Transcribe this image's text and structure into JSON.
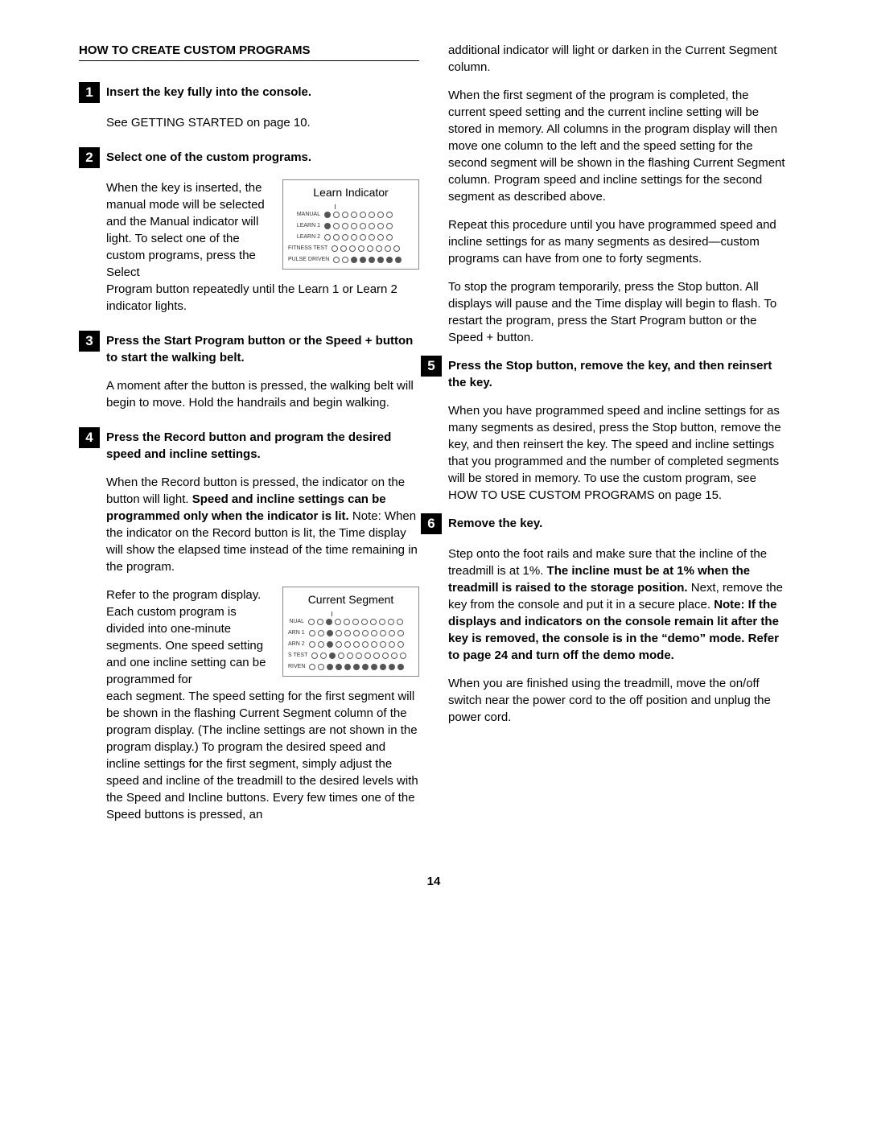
{
  "left": {
    "title": "HOW TO CREATE CUSTOM PROGRAMS",
    "step1": {
      "num": "1",
      "heading": "Insert the key fully into the console.",
      "p1": "See GETTING STARTED on page 10."
    },
    "step2": {
      "num": "2",
      "heading": "Select one of the custom programs.",
      "p1a": "When the key is inserted, the manual mode will be selected and the Manual indicator will light. To select one of the custom programs, press the Select",
      "p1b": "Program button repeatedly until the Learn 1 or Learn 2 indicator lights.",
      "diagram": {
        "title": "Learn Indicator",
        "rows": [
          "MANUAL",
          "LEARN 1",
          "LEARN 2",
          "FITNESS TEST",
          "PULSE DRIVEN"
        ]
      }
    },
    "step3": {
      "num": "3",
      "heading": "Press the Start Program button or the Speed + button to start the walking belt.",
      "p1": "A moment after the button is pressed, the walking belt will begin to move. Hold the handrails and begin walking."
    },
    "step4": {
      "num": "4",
      "heading": "Press the Record button and program the desired speed and incline settings.",
      "p1a": "When the Record button is pressed, the indicator on the button will light. ",
      "p1b": "Speed and incline settings can be programmed only when the indicator is lit.",
      "p1c": " Note: When the indicator on the Record button is lit, the Time display will show the elapsed time instead of the time remaining in the program.",
      "p2a": "Refer to the program display. Each custom program is divided into one-minute segments. One speed setting and one incline setting can be programmed for",
      "p2b": "each segment. The speed setting for the first segment will be shown in the flashing Current Segment column of the program display. (The incline settings are not shown in the program display.) To program the desired speed and incline settings for the first segment, simply adjust the speed and incline of the treadmill to the desired levels with the Speed and Incline buttons. Every few times one of the Speed buttons is pressed, an",
      "diagram2": {
        "title": "Current Segment",
        "rows": [
          "NUAL",
          "ARN 1",
          "ARN 2",
          "S TEST",
          "RIVEN"
        ]
      }
    }
  },
  "right": {
    "p0": "additional indicator will light or darken in the Current Segment column.",
    "p1": "When the first segment of the program is completed, the current speed setting and the current incline setting will be stored in memory. All columns in the program display will then move one column to the left and the speed setting for the second segment will be shown in the flashing Current Segment column. Program speed and incline settings for the second segment as described above.",
    "p2": "Repeat this procedure until you have programmed speed and incline settings for as many segments as desired—custom programs can have from one to forty segments.",
    "p3": "To stop the program temporarily, press the Stop button. All displays will pause and the Time display will begin to flash. To restart the program, press the Start Program button or the Speed + button.",
    "step5": {
      "num": "5",
      "heading": "Press the Stop button, remove the key, and then reinsert the key.",
      "p1": "When you have programmed speed and incline settings for as many segments as desired, press the Stop button, remove the key, and then reinsert the key. The speed and incline settings that you programmed and the number of completed segments will be stored in memory. To use the custom program, see HOW TO USE CUSTOM PROGRAMS on page 15."
    },
    "step6": {
      "num": "6",
      "heading": "Remove the key.",
      "p1a": "Step onto the foot rails and make sure that the incline of the treadmill is at 1%. ",
      "p1b": "The incline must be at 1% when the treadmill is raised to the storage position.",
      "p1c": " Next, remove the key from the console and put it in a secure place. ",
      "p1d": "Note: If the displays and indicators on the console remain lit after the key is removed, the console is in the “demo” mode. Refer to page 24 and turn off the demo mode.",
      "p2": "When you are finished using the treadmill, move the on/off switch near the power cord to the off position and unplug the power cord."
    }
  },
  "pageNumber": "14"
}
